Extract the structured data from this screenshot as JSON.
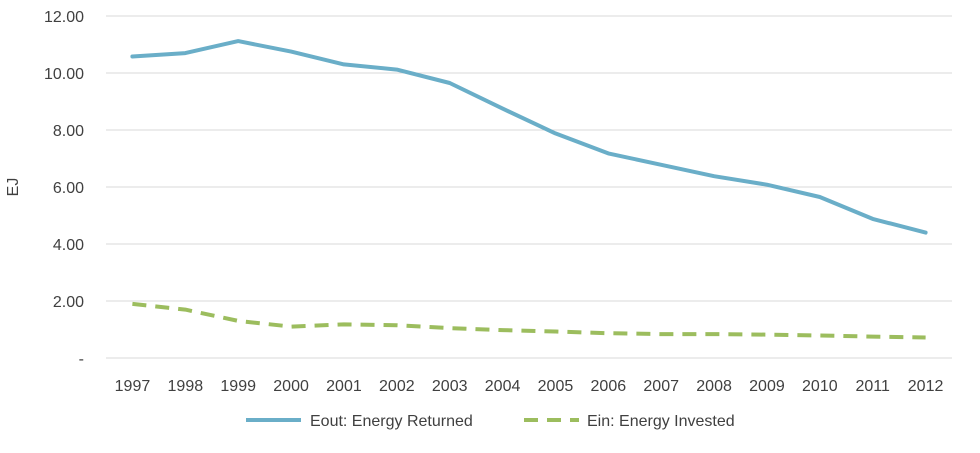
{
  "chart_data": {
    "type": "line",
    "title": "",
    "xlabel": "",
    "ylabel": "EJ",
    "ylim": [
      0,
      12
    ],
    "y_ticks": [
      {
        "value": 0,
        "label": "-"
      },
      {
        "value": 2,
        "label": "2.00"
      },
      {
        "value": 4,
        "label": "4.00"
      },
      {
        "value": 6,
        "label": "6.00"
      },
      {
        "value": 8,
        "label": "8.00"
      },
      {
        "value": 10,
        "label": "10.00"
      },
      {
        "value": 12,
        "label": "12.00"
      }
    ],
    "grid": true,
    "legend_position": "bottom",
    "categories": [
      "1997",
      "1998",
      "1999",
      "2000",
      "2001",
      "2002",
      "2003",
      "2004",
      "2005",
      "2006",
      "2007",
      "2008",
      "2009",
      "2010",
      "2011",
      "2012"
    ],
    "series": [
      {
        "name": "Eout: Energy Returned",
        "color": "#6aaec8",
        "dash": "solid",
        "values": [
          10.58,
          10.7,
          11.12,
          10.75,
          10.3,
          10.12,
          9.65,
          8.75,
          7.88,
          7.18,
          6.78,
          6.38,
          6.08,
          5.65,
          4.88,
          4.4
        ]
      },
      {
        "name": "Ein: Energy Invested",
        "color": "#9cbd5e",
        "dash": "dashed",
        "values": [
          1.9,
          1.7,
          1.3,
          1.1,
          1.18,
          1.15,
          1.05,
          0.98,
          0.93,
          0.87,
          0.84,
          0.84,
          0.82,
          0.79,
          0.75,
          0.72
        ]
      }
    ]
  }
}
